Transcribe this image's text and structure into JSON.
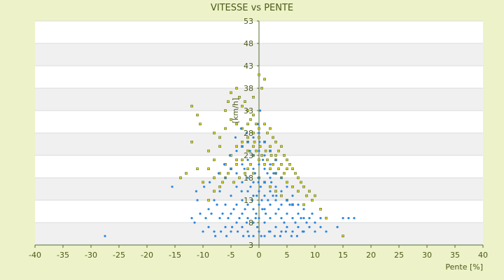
{
  "chart_data": {
    "type": "scatter",
    "title": "VITESSE vs PENTE",
    "xlabel": "Pente [%]",
    "ylabel": "[km/h]",
    "xlim": [
      -40,
      40
    ],
    "ylim": [
      3,
      53
    ],
    "x_ticks": [
      "-40",
      "-35",
      "-30",
      "-25",
      "-20",
      "-15",
      "-10",
      "-5",
      "0",
      "5",
      "10",
      "15",
      "20",
      "25",
      "30",
      "35",
      "40"
    ],
    "y_ticks": [
      "3",
      "8",
      "13",
      "18",
      "23",
      "28",
      "33",
      "38",
      "43",
      "48",
      "53"
    ],
    "grid": true,
    "legend": "none",
    "colors": {
      "background": "#eef2c8",
      "plot_band_light": "#ffffff",
      "plot_band_dark": "#f0f0f0",
      "axis": "#556b2f",
      "series_blue": "#2e86de",
      "series_yellow": "#d8d22a",
      "series_yellow_edge": "#5a6b10"
    },
    "series": [
      {
        "color": "#d8d22a",
        "points": [
          [
            -12,
            34
          ],
          [
            -11,
            32
          ],
          [
            -10.5,
            30
          ],
          [
            -12,
            26
          ],
          [
            -11,
            20
          ],
          [
            -13,
            19
          ],
          [
            -14,
            18
          ],
          [
            -9,
            24
          ],
          [
            -8,
            28
          ],
          [
            -7,
            27
          ],
          [
            -6,
            33
          ],
          [
            -5.5,
            35
          ],
          [
            -5,
            37
          ],
          [
            -4,
            38
          ],
          [
            -3.5,
            36
          ],
          [
            -3,
            34
          ],
          [
            -2.5,
            35
          ],
          [
            -2,
            33
          ],
          [
            -1.5,
            31
          ],
          [
            -1,
            32
          ],
          [
            -0.5,
            30
          ],
          [
            0,
            41
          ],
          [
            0.5,
            38
          ],
          [
            1,
            40
          ],
          [
            -1,
            36
          ],
          [
            -2,
            30
          ],
          [
            -3,
            29
          ],
          [
            -4,
            30
          ],
          [
            -5,
            31
          ],
          [
            -6,
            29
          ],
          [
            -7,
            25
          ],
          [
            -8,
            22
          ],
          [
            -9,
            20
          ],
          [
            -10,
            17
          ],
          [
            -8,
            18
          ],
          [
            -7,
            19
          ],
          [
            -6,
            21
          ],
          [
            -5,
            23
          ],
          [
            -4,
            25
          ],
          [
            -3,
            26
          ],
          [
            -2,
            27
          ],
          [
            -1,
            28
          ],
          [
            0,
            29
          ],
          [
            1,
            30
          ],
          [
            1.5,
            28
          ],
          [
            2,
            29
          ],
          [
            2.5,
            27
          ],
          [
            3,
            26
          ],
          [
            3.5,
            24
          ],
          [
            4,
            25
          ],
          [
            4.5,
            23
          ],
          [
            5,
            22
          ],
          [
            5.5,
            21
          ],
          [
            6,
            20
          ],
          [
            6.5,
            19
          ],
          [
            7,
            18
          ],
          [
            7.5,
            17
          ],
          [
            8,
            16
          ],
          [
            9,
            15
          ],
          [
            10,
            14
          ],
          [
            9.5,
            13
          ],
          [
            8.5,
            14
          ],
          [
            7,
            15
          ],
          [
            6,
            16
          ],
          [
            5,
            17
          ],
          [
            4,
            18
          ],
          [
            3,
            19
          ],
          [
            2,
            20
          ],
          [
            1,
            21
          ],
          [
            0,
            22
          ],
          [
            -1,
            23
          ],
          [
            -2,
            24
          ],
          [
            -3,
            25
          ],
          [
            -4,
            22
          ],
          [
            -5,
            20
          ],
          [
            -6,
            18
          ],
          [
            -7,
            16
          ],
          [
            -8,
            15
          ],
          [
            -9,
            13
          ],
          [
            -2,
            20
          ],
          [
            -1,
            19
          ],
          [
            0,
            18
          ],
          [
            1,
            17
          ],
          [
            2,
            16
          ],
          [
            3,
            15
          ],
          [
            4,
            14
          ],
          [
            5,
            13
          ],
          [
            6,
            12
          ],
          [
            2,
            24
          ],
          [
            3,
            22
          ],
          [
            1,
            26
          ],
          [
            0,
            27
          ],
          [
            -1,
            25
          ],
          [
            4,
            21
          ],
          [
            5,
            20
          ],
          [
            3,
            23
          ],
          [
            2,
            25
          ],
          [
            -3,
            22
          ],
          [
            -4,
            21
          ],
          [
            -2,
            26
          ],
          [
            15,
            5
          ],
          [
            11,
            11
          ],
          [
            12,
            9
          ],
          [
            8,
            12
          ],
          [
            -0.5,
            24
          ],
          [
            0.5,
            23
          ],
          [
            1.5,
            22
          ],
          [
            2.5,
            21
          ],
          [
            3.5,
            20
          ],
          [
            4.5,
            19
          ],
          [
            -1.5,
            21
          ],
          [
            -2.5,
            19
          ],
          [
            -3.5,
            18
          ],
          [
            -4.5,
            17
          ],
          [
            -5.5,
            19
          ],
          [
            -6.5,
            17
          ],
          [
            0.2,
            25
          ],
          [
            1.2,
            24
          ],
          [
            -0.8,
            26
          ],
          [
            2.2,
            23
          ]
        ]
      },
      {
        "color": "#2e86de",
        "points": [
          [
            -27.5,
            5
          ],
          [
            -15.5,
            16
          ],
          [
            -12,
            9
          ],
          [
            -11,
            13
          ],
          [
            -11.5,
            8
          ],
          [
            -10,
            6
          ],
          [
            -9,
            7
          ],
          [
            -9,
            11
          ],
          [
            -8,
            13
          ],
          [
            -8,
            6
          ],
          [
            -7,
            9
          ],
          [
            -7,
            15
          ],
          [
            -6,
            12
          ],
          [
            -6,
            7
          ],
          [
            -6,
            18
          ],
          [
            -5,
            10
          ],
          [
            -5,
            14
          ],
          [
            -5,
            20
          ],
          [
            -5,
            6
          ],
          [
            -4,
            8
          ],
          [
            -4,
            12
          ],
          [
            -4,
            16
          ],
          [
            -4,
            19
          ],
          [
            -4,
            24
          ],
          [
            -3,
            7
          ],
          [
            -3,
            10
          ],
          [
            -3,
            13
          ],
          [
            -3,
            17
          ],
          [
            -3,
            21
          ],
          [
            -3,
            25
          ],
          [
            -2,
            6
          ],
          [
            -2,
            9
          ],
          [
            -2,
            12
          ],
          [
            -2,
            15
          ],
          [
            -2,
            18
          ],
          [
            -2,
            22
          ],
          [
            -2,
            26
          ],
          [
            -1,
            5
          ],
          [
            -1,
            8
          ],
          [
            -1,
            11
          ],
          [
            -1,
            14
          ],
          [
            -1,
            17
          ],
          [
            -1,
            20
          ],
          [
            -1,
            23
          ],
          [
            -1,
            27
          ],
          [
            0,
            6
          ],
          [
            0,
            9
          ],
          [
            0,
            12
          ],
          [
            0,
            15
          ],
          [
            0,
            18
          ],
          [
            0,
            21
          ],
          [
            0,
            24
          ],
          [
            0,
            28
          ],
          [
            1,
            5
          ],
          [
            1,
            8
          ],
          [
            1,
            11
          ],
          [
            1,
            14
          ],
          [
            1,
            17
          ],
          [
            1,
            20
          ],
          [
            1,
            23
          ],
          [
            1,
            26
          ],
          [
            2,
            6
          ],
          [
            2,
            9
          ],
          [
            2,
            12
          ],
          [
            2,
            15
          ],
          [
            2,
            18
          ],
          [
            2,
            21
          ],
          [
            2,
            24
          ],
          [
            3,
            7
          ],
          [
            3,
            10
          ],
          [
            3,
            13
          ],
          [
            3,
            16
          ],
          [
            3,
            19
          ],
          [
            3,
            22
          ],
          [
            4,
            6
          ],
          [
            4,
            9
          ],
          [
            4,
            12
          ],
          [
            4,
            15
          ],
          [
            4,
            18
          ],
          [
            5,
            7
          ],
          [
            5,
            10
          ],
          [
            5,
            13
          ],
          [
            5,
            16
          ],
          [
            6,
            6
          ],
          [
            6,
            9
          ],
          [
            6,
            12
          ],
          [
            6,
            14
          ],
          [
            7,
            7
          ],
          [
            7,
            10
          ],
          [
            7,
            12
          ],
          [
            8,
            6
          ],
          [
            8,
            9
          ],
          [
            8,
            11
          ],
          [
            9,
            7
          ],
          [
            9,
            9
          ],
          [
            10,
            6
          ],
          [
            10,
            8
          ],
          [
            11,
            7
          ],
          [
            12,
            6
          ],
          [
            14,
            7
          ],
          [
            15,
            9
          ],
          [
            16,
            9
          ],
          [
            17,
            9
          ],
          [
            11,
            9
          ],
          [
            -0.5,
            10
          ],
          [
            0.5,
            13
          ],
          [
            -1.5,
            16
          ],
          [
            1.5,
            19
          ],
          [
            -2.5,
            11
          ],
          [
            2.5,
            14
          ],
          [
            -3.5,
            9
          ],
          [
            3.5,
            11
          ],
          [
            -0.3,
            7
          ],
          [
            0.3,
            16
          ],
          [
            -0.7,
            19
          ],
          [
            0.7,
            22
          ],
          [
            -1.2,
            13
          ],
          [
            1.2,
            10
          ],
          [
            -2.2,
            8
          ],
          [
            2.2,
            17
          ],
          [
            -4.5,
            11
          ],
          [
            4.5,
            8
          ],
          [
            -5.5,
            9
          ],
          [
            5.5,
            12
          ],
          [
            -6.5,
            10
          ],
          [
            6.5,
            8
          ],
          [
            -7.5,
            12
          ],
          [
            7.5,
            9
          ],
          [
            -8.5,
            10
          ],
          [
            8.5,
            8
          ],
          [
            -9.5,
            9
          ],
          [
            9.5,
            10
          ],
          [
            -0.2,
            30
          ],
          [
            0.2,
            33
          ],
          [
            -0.4,
            14
          ],
          [
            0.4,
            5
          ],
          [
            -1.8,
            5
          ],
          [
            1.8,
            6
          ],
          [
            -2.8,
            5
          ],
          [
            2.8,
            5
          ],
          [
            -3.8,
            6
          ],
          [
            3.8,
            5
          ],
          [
            -4.8,
            7
          ],
          [
            4.8,
            6
          ],
          [
            -5.8,
            5
          ],
          [
            5.8,
            5
          ],
          [
            -6.8,
            6
          ],
          [
            6.8,
            5
          ],
          [
            -7.8,
            5
          ],
          [
            7.8,
            6
          ],
          [
            -10.5,
            10
          ],
          [
            -11.2,
            15
          ],
          [
            -9.8,
            16
          ],
          [
            -8.8,
            17
          ],
          [
            -7.2,
            19
          ],
          [
            -6.2,
            21
          ],
          [
            -5.2,
            23
          ],
          [
            -4.2,
            27
          ],
          [
            -3.2,
            29
          ],
          [
            -2.2,
            28
          ],
          [
            0.1,
            26
          ],
          [
            -0.1,
            17
          ],
          [
            0.6,
            11
          ],
          [
            -0.6,
            9
          ],
          [
            1.6,
            13
          ],
          [
            -1.6,
            24
          ],
          [
            2.6,
            19
          ],
          [
            -2.6,
            20
          ],
          [
            3.1,
            14
          ],
          [
            -3.1,
            15
          ]
        ]
      }
    ]
  }
}
